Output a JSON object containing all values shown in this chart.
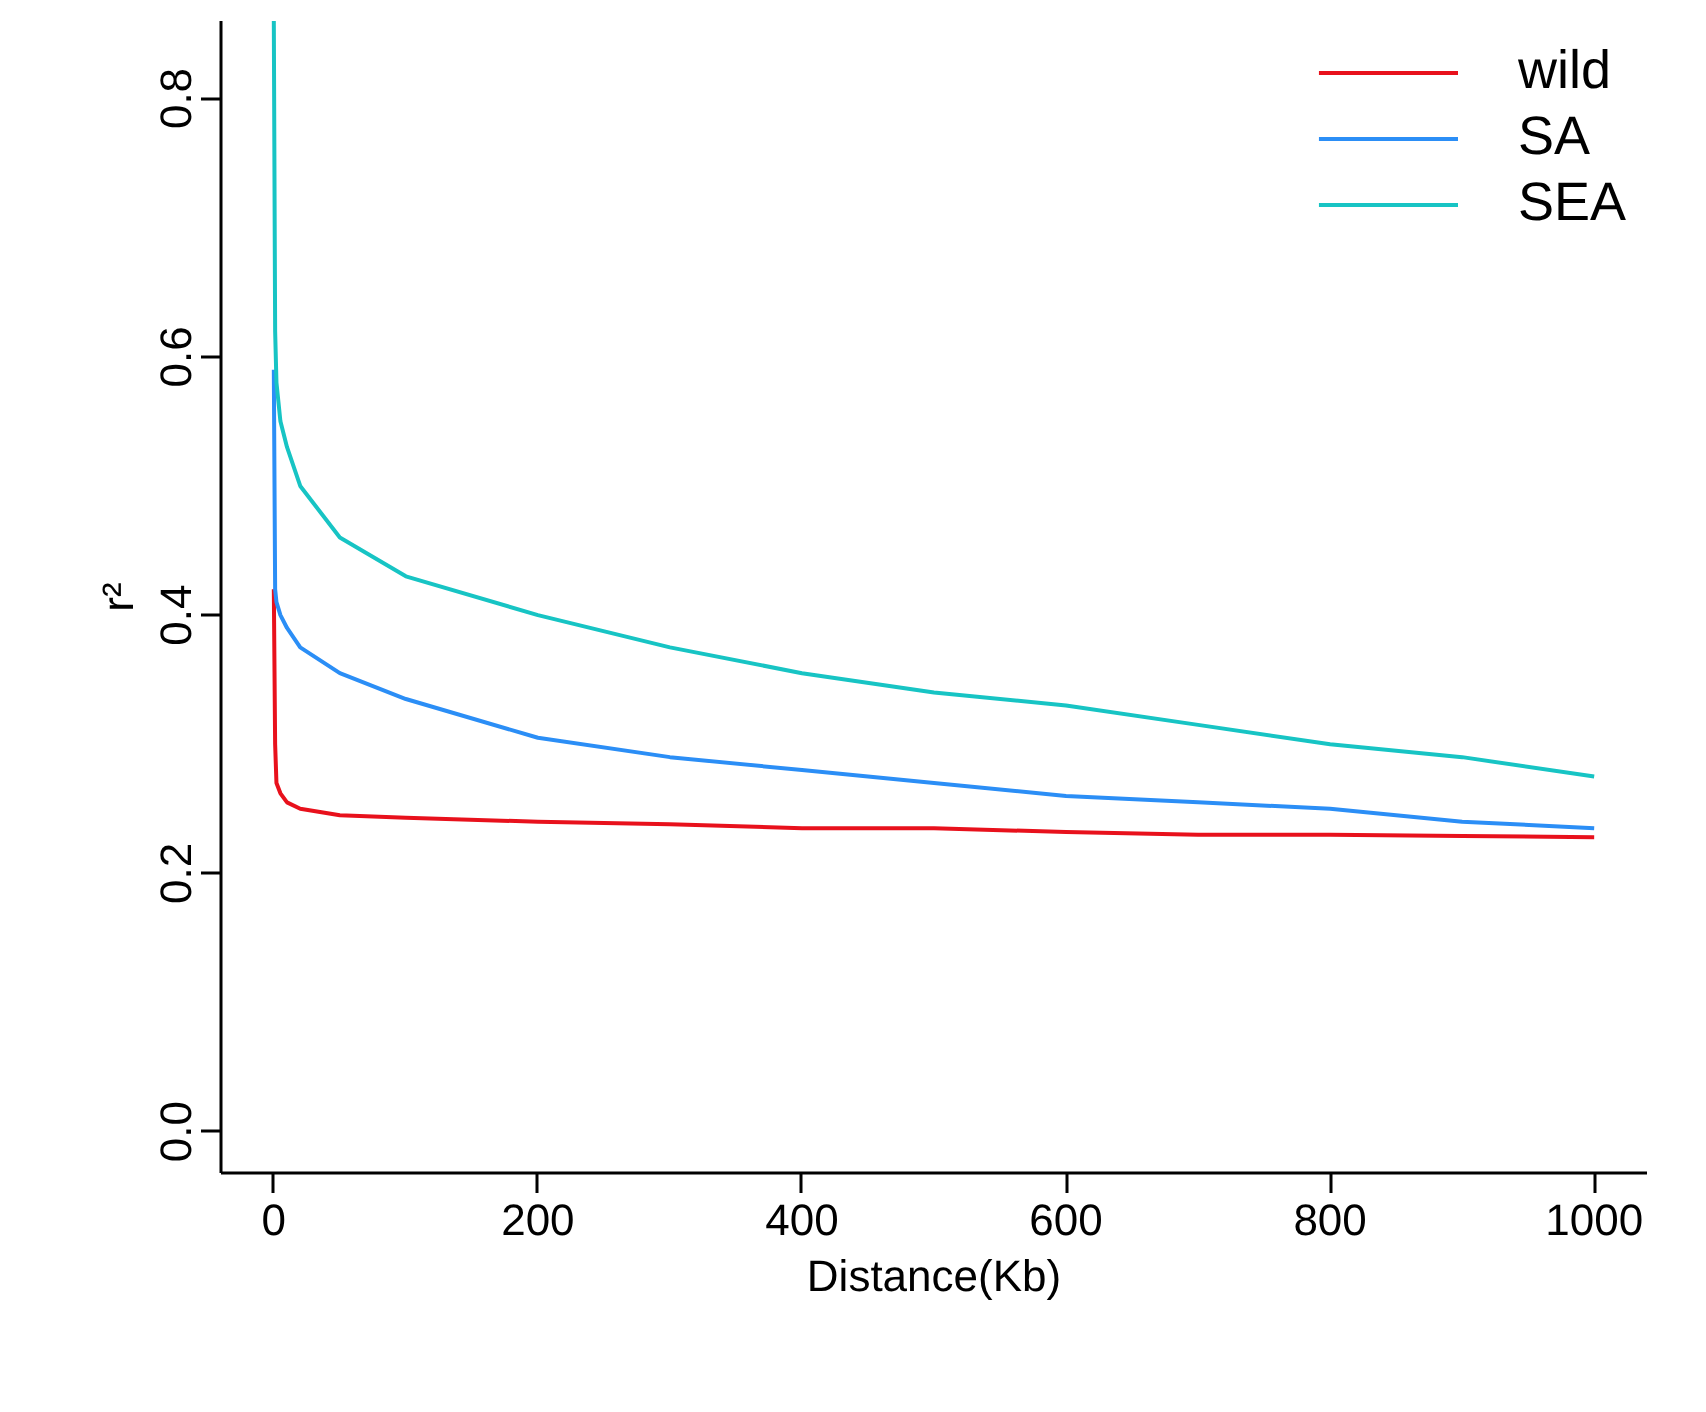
{
  "chart_data": {
    "type": "line",
    "xlabel": "Distance(Kb)",
    "ylabel": "r²",
    "xlim": [
      -40,
      1040
    ],
    "ylim": [
      -0.032,
      0.86
    ],
    "xticks": [
      0,
      200,
      400,
      600,
      800,
      1000
    ],
    "yticks": [
      {
        "value": 0,
        "label": "0.0"
      },
      0.2,
      0.4,
      0.6,
      0.8
    ],
    "grid": false,
    "legend": "top right",
    "line_style": "solid",
    "marker": "none",
    "series": [
      {
        "name": "wild",
        "color": "#e8111c",
        "x": [
          0,
          1,
          2,
          5,
          10,
          20,
          50,
          100,
          200,
          300,
          400,
          500,
          600,
          700,
          800,
          900,
          1000
        ],
        "values": [
          0.42,
          0.3,
          0.27,
          0.262,
          0.255,
          0.25,
          0.245,
          0.243,
          0.24,
          0.238,
          0.235,
          0.235,
          0.232,
          0.23,
          0.23,
          0.229,
          0.228
        ]
      },
      {
        "name": "SA",
        "color": "#2b8ef6",
        "x": [
          0,
          1,
          2,
          5,
          10,
          20,
          50,
          100,
          200,
          300,
          400,
          500,
          600,
          700,
          800,
          900,
          1000
        ],
        "values": [
          0.59,
          0.42,
          0.41,
          0.4,
          0.39,
          0.375,
          0.355,
          0.335,
          0.305,
          0.29,
          0.28,
          0.27,
          0.26,
          0.255,
          0.25,
          0.24,
          0.235
        ]
      },
      {
        "name": "SEA",
        "color": "#17c4c4",
        "x": [
          0,
          1,
          2,
          5,
          10,
          20,
          50,
          100,
          200,
          300,
          400,
          500,
          600,
          700,
          800,
          900,
          1000
        ],
        "values": [
          0.86,
          0.62,
          0.58,
          0.55,
          0.53,
          0.5,
          0.46,
          0.43,
          0.4,
          0.375,
          0.355,
          0.34,
          0.33,
          0.315,
          0.3,
          0.29,
          0.275
        ]
      }
    ]
  }
}
